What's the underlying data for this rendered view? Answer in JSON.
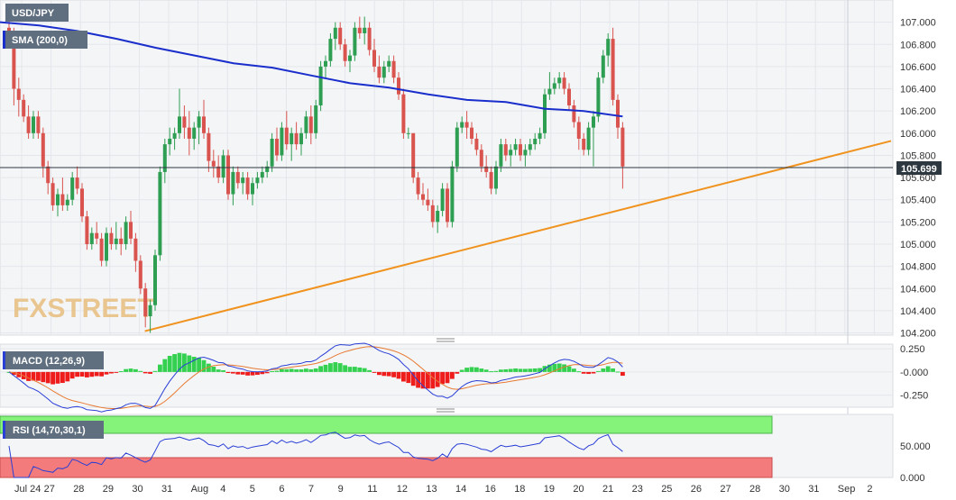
{
  "chart_data": {
    "type": "candlestick",
    "symbol": "USD/JPY",
    "sma_label": "SMA (200,0)",
    "current_price_label": "105.699",
    "current_price": 105.699,
    "watermark": "FXSTREET",
    "price_axis_ticks": [
      "107.000",
      "106.800",
      "106.600",
      "106.400",
      "106.200",
      "106.000",
      "105.800",
      "105.600",
      "105.400",
      "105.200",
      "105.000",
      "104.800",
      "104.600",
      "104.400",
      "104.200"
    ],
    "ylim": [
      104.18,
      107.2
    ],
    "x_labels": [
      "Jul 24",
      "27",
      "28",
      "29",
      "30",
      "31",
      "Aug",
      "4",
      "5",
      "6",
      "7",
      "9",
      "11",
      "12",
      "13",
      "14",
      "16",
      "18",
      "19",
      "20",
      "21",
      "23",
      "25",
      "26",
      "27",
      "28",
      "30",
      "31",
      "Sep",
      "2"
    ],
    "candles": [
      {
        "o": 106.95,
        "h": 107.05,
        "l": 106.8,
        "c": 106.9
      },
      {
        "o": 106.9,
        "h": 106.95,
        "l": 106.25,
        "c": 106.4
      },
      {
        "o": 106.4,
        "h": 106.5,
        "l": 106.15,
        "c": 106.3
      },
      {
        "o": 106.3,
        "h": 106.35,
        "l": 106.1,
        "c": 106.15
      },
      {
        "o": 106.15,
        "h": 106.25,
        "l": 105.95,
        "c": 106.0
      },
      {
        "o": 106.0,
        "h": 106.2,
        "l": 105.95,
        "c": 106.15
      },
      {
        "o": 106.15,
        "h": 106.2,
        "l": 105.95,
        "c": 106.0
      },
      {
        "o": 106.0,
        "h": 106.05,
        "l": 105.6,
        "c": 105.7
      },
      {
        "o": 105.7,
        "h": 105.75,
        "l": 105.45,
        "c": 105.55
      },
      {
        "o": 105.55,
        "h": 105.6,
        "l": 105.3,
        "c": 105.35
      },
      {
        "o": 105.35,
        "h": 105.5,
        "l": 105.25,
        "c": 105.45
      },
      {
        "o": 105.45,
        "h": 105.6,
        "l": 105.3,
        "c": 105.35
      },
      {
        "o": 105.35,
        "h": 105.45,
        "l": 105.3,
        "c": 105.4
      },
      {
        "o": 105.4,
        "h": 105.65,
        "l": 105.35,
        "c": 105.6
      },
      {
        "o": 105.6,
        "h": 105.7,
        "l": 105.45,
        "c": 105.5
      },
      {
        "o": 105.5,
        "h": 105.55,
        "l": 105.2,
        "c": 105.25
      },
      {
        "o": 105.25,
        "h": 105.3,
        "l": 104.95,
        "c": 105.0
      },
      {
        "o": 105.0,
        "h": 105.15,
        "l": 104.95,
        "c": 105.1
      },
      {
        "o": 105.1,
        "h": 105.2,
        "l": 105.0,
        "c": 105.05
      },
      {
        "o": 105.05,
        "h": 105.1,
        "l": 104.8,
        "c": 104.85
      },
      {
        "o": 104.85,
        "h": 105.15,
        "l": 104.8,
        "c": 105.1
      },
      {
        "o": 105.1,
        "h": 105.15,
        "l": 104.95,
        "c": 105.0
      },
      {
        "o": 105.0,
        "h": 105.2,
        "l": 104.95,
        "c": 105.05
      },
      {
        "o": 105.05,
        "h": 105.15,
        "l": 104.9,
        "c": 105.0
      },
      {
        "o": 105.0,
        "h": 105.25,
        "l": 104.95,
        "c": 105.2
      },
      {
        "o": 105.2,
        "h": 105.3,
        "l": 105.0,
        "c": 105.05
      },
      {
        "o": 105.05,
        "h": 105.1,
        "l": 104.75,
        "c": 104.85
      },
      {
        "o": 104.85,
        "h": 104.9,
        "l": 104.55,
        "c": 104.6
      },
      {
        "o": 104.6,
        "h": 104.65,
        "l": 104.25,
        "c": 104.35
      },
      {
        "o": 104.35,
        "h": 104.5,
        "l": 104.2,
        "c": 104.45
      },
      {
        "o": 104.45,
        "h": 104.95,
        "l": 104.4,
        "c": 104.9
      },
      {
        "o": 104.9,
        "h": 105.7,
        "l": 104.85,
        "c": 105.65
      },
      {
        "o": 105.65,
        "h": 105.95,
        "l": 105.55,
        "c": 105.9
      },
      {
        "o": 105.9,
        "h": 106.05,
        "l": 105.8,
        "c": 105.95
      },
      {
        "o": 105.95,
        "h": 106.05,
        "l": 105.85,
        "c": 106.0
      },
      {
        "o": 106.0,
        "h": 106.4,
        "l": 105.95,
        "c": 106.15
      },
      {
        "o": 106.15,
        "h": 106.25,
        "l": 105.95,
        "c": 106.05
      },
      {
        "o": 106.05,
        "h": 106.2,
        "l": 105.8,
        "c": 105.95
      },
      {
        "o": 105.95,
        "h": 106.1,
        "l": 105.85,
        "c": 106.05
      },
      {
        "o": 106.05,
        "h": 106.2,
        "l": 105.9,
        "c": 106.15
      },
      {
        "o": 106.15,
        "h": 106.3,
        "l": 105.95,
        "c": 106.0
      },
      {
        "o": 106.0,
        "h": 106.05,
        "l": 105.65,
        "c": 105.75
      },
      {
        "o": 105.75,
        "h": 105.85,
        "l": 105.6,
        "c": 105.7
      },
      {
        "o": 105.7,
        "h": 105.8,
        "l": 105.55,
        "c": 105.6
      },
      {
        "o": 105.6,
        "h": 105.85,
        "l": 105.55,
        "c": 105.8
      },
      {
        "o": 105.8,
        "h": 105.85,
        "l": 105.4,
        "c": 105.45
      },
      {
        "o": 105.45,
        "h": 105.7,
        "l": 105.35,
        "c": 105.65
      },
      {
        "o": 105.65,
        "h": 105.7,
        "l": 105.5,
        "c": 105.55
      },
      {
        "o": 105.55,
        "h": 105.65,
        "l": 105.45,
        "c": 105.6
      },
      {
        "o": 105.6,
        "h": 105.65,
        "l": 105.4,
        "c": 105.45
      },
      {
        "o": 105.45,
        "h": 105.6,
        "l": 105.35,
        "c": 105.55
      },
      {
        "o": 105.55,
        "h": 105.65,
        "l": 105.5,
        "c": 105.6
      },
      {
        "o": 105.6,
        "h": 105.7,
        "l": 105.55,
        "c": 105.65
      },
      {
        "o": 105.65,
        "h": 105.75,
        "l": 105.6,
        "c": 105.7
      },
      {
        "o": 105.7,
        "h": 106.0,
        "l": 105.65,
        "c": 105.95
      },
      {
        "o": 105.95,
        "h": 106.05,
        "l": 105.75,
        "c": 105.8
      },
      {
        "o": 105.8,
        "h": 106.1,
        "l": 105.75,
        "c": 106.05
      },
      {
        "o": 106.05,
        "h": 106.2,
        "l": 105.85,
        "c": 105.9
      },
      {
        "o": 105.9,
        "h": 106.05,
        "l": 105.75,
        "c": 106.0
      },
      {
        "o": 106.0,
        "h": 106.1,
        "l": 105.85,
        "c": 105.9
      },
      {
        "o": 105.9,
        "h": 106.05,
        "l": 105.8,
        "c": 106.0
      },
      {
        "o": 106.0,
        "h": 106.2,
        "l": 105.95,
        "c": 106.15
      },
      {
        "o": 106.15,
        "h": 106.25,
        "l": 105.9,
        "c": 106.0
      },
      {
        "o": 106.0,
        "h": 106.3,
        "l": 105.95,
        "c": 106.25
      },
      {
        "o": 106.25,
        "h": 106.65,
        "l": 106.2,
        "c": 106.6
      },
      {
        "o": 106.6,
        "h": 106.7,
        "l": 106.5,
        "c": 106.65
      },
      {
        "o": 106.65,
        "h": 106.9,
        "l": 106.6,
        "c": 106.85
      },
      {
        "o": 106.85,
        "h": 107.0,
        "l": 106.75,
        "c": 106.95
      },
      {
        "o": 106.95,
        "h": 107.0,
        "l": 106.75,
        "c": 106.8
      },
      {
        "o": 106.8,
        "h": 106.85,
        "l": 106.6,
        "c": 106.65
      },
      {
        "o": 106.65,
        "h": 106.75,
        "l": 106.55,
        "c": 106.7
      },
      {
        "o": 106.7,
        "h": 107.0,
        "l": 106.65,
        "c": 106.95
      },
      {
        "o": 106.95,
        "h": 107.05,
        "l": 106.85,
        "c": 106.9
      },
      {
        "o": 106.9,
        "h": 107.05,
        "l": 106.8,
        "c": 106.95
      },
      {
        "o": 106.95,
        "h": 107.0,
        "l": 106.7,
        "c": 106.75
      },
      {
        "o": 106.75,
        "h": 106.85,
        "l": 106.55,
        "c": 106.6
      },
      {
        "o": 106.6,
        "h": 106.7,
        "l": 106.45,
        "c": 106.5
      },
      {
        "o": 106.5,
        "h": 106.65,
        "l": 106.45,
        "c": 106.6
      },
      {
        "o": 106.6,
        "h": 106.7,
        "l": 106.55,
        "c": 106.65
      },
      {
        "o": 106.65,
        "h": 106.7,
        "l": 106.45,
        "c": 106.5
      },
      {
        "o": 106.5,
        "h": 106.55,
        "l": 106.3,
        "c": 106.35
      },
      {
        "o": 106.35,
        "h": 106.4,
        "l": 105.95,
        "c": 106.0
      },
      {
        "o": 106.0,
        "h": 106.05,
        "l": 105.95,
        "c": 106.0
      },
      {
        "o": 106.0,
        "h": 106.0,
        "l": 105.55,
        "c": 105.6
      },
      {
        "o": 105.6,
        "h": 105.65,
        "l": 105.4,
        "c": 105.45
      },
      {
        "o": 105.45,
        "h": 105.55,
        "l": 105.35,
        "c": 105.4
      },
      {
        "o": 105.4,
        "h": 105.5,
        "l": 105.3,
        "c": 105.35
      },
      {
        "o": 105.35,
        "h": 105.4,
        "l": 105.15,
        "c": 105.2
      },
      {
        "o": 105.2,
        "h": 105.35,
        "l": 105.1,
        "c": 105.3
      },
      {
        "o": 105.3,
        "h": 105.55,
        "l": 105.25,
        "c": 105.5
      },
      {
        "o": 105.5,
        "h": 105.55,
        "l": 105.15,
        "c": 105.2
      },
      {
        "o": 105.2,
        "h": 105.75,
        "l": 105.15,
        "c": 105.7
      },
      {
        "o": 105.7,
        "h": 106.1,
        "l": 105.65,
        "c": 106.05
      },
      {
        "o": 106.05,
        "h": 106.15,
        "l": 106.0,
        "c": 106.1
      },
      {
        "o": 106.1,
        "h": 106.2,
        "l": 105.95,
        "c": 106.05
      },
      {
        "o": 106.05,
        "h": 106.1,
        "l": 105.9,
        "c": 105.95
      },
      {
        "o": 105.95,
        "h": 106.0,
        "l": 105.8,
        "c": 105.85
      },
      {
        "o": 105.85,
        "h": 105.9,
        "l": 105.65,
        "c": 105.7
      },
      {
        "o": 105.7,
        "h": 105.8,
        "l": 105.6,
        "c": 105.65
      },
      {
        "o": 105.65,
        "h": 105.7,
        "l": 105.45,
        "c": 105.5
      },
      {
        "o": 105.5,
        "h": 105.75,
        "l": 105.45,
        "c": 105.7
      },
      {
        "o": 105.7,
        "h": 105.95,
        "l": 105.65,
        "c": 105.9
      },
      {
        "o": 105.9,
        "h": 105.95,
        "l": 105.75,
        "c": 105.8
      },
      {
        "o": 105.8,
        "h": 105.9,
        "l": 105.7,
        "c": 105.85
      },
      {
        "o": 105.85,
        "h": 105.95,
        "l": 105.8,
        "c": 105.9
      },
      {
        "o": 105.9,
        "h": 105.95,
        "l": 105.75,
        "c": 105.8
      },
      {
        "o": 105.8,
        "h": 105.9,
        "l": 105.7,
        "c": 105.85
      },
      {
        "o": 105.85,
        "h": 105.95,
        "l": 105.8,
        "c": 105.9
      },
      {
        "o": 105.9,
        "h": 106.0,
        "l": 105.85,
        "c": 105.95
      },
      {
        "o": 105.95,
        "h": 106.05,
        "l": 105.9,
        "c": 106.0
      },
      {
        "o": 106.0,
        "h": 106.4,
        "l": 105.95,
        "c": 106.35
      },
      {
        "o": 106.35,
        "h": 106.55,
        "l": 106.3,
        "c": 106.4
      },
      {
        "o": 106.4,
        "h": 106.5,
        "l": 106.35,
        "c": 106.45
      },
      {
        "o": 106.45,
        "h": 106.55,
        "l": 106.4,
        "c": 106.5
      },
      {
        "o": 106.5,
        "h": 106.55,
        "l": 106.35,
        "c": 106.4
      },
      {
        "o": 106.4,
        "h": 106.45,
        "l": 106.2,
        "c": 106.25
      },
      {
        "o": 106.25,
        "h": 106.3,
        "l": 106.05,
        "c": 106.1
      },
      {
        "o": 106.1,
        "h": 106.15,
        "l": 105.85,
        "c": 105.95
      },
      {
        "o": 105.95,
        "h": 106.0,
        "l": 105.8,
        "c": 105.85
      },
      {
        "o": 105.85,
        "h": 106.1,
        "l": 105.8,
        "c": 106.05
      },
      {
        "o": 106.05,
        "h": 106.2,
        "l": 105.7,
        "c": 106.15
      },
      {
        "o": 106.15,
        "h": 106.55,
        "l": 106.1,
        "c": 106.5
      },
      {
        "o": 106.5,
        "h": 106.75,
        "l": 106.45,
        "c": 106.7
      },
      {
        "o": 106.7,
        "h": 106.9,
        "l": 106.6,
        "c": 106.85
      },
      {
        "o": 106.85,
        "h": 106.95,
        "l": 106.25,
        "c": 106.3
      },
      {
        "o": 106.3,
        "h": 106.35,
        "l": 105.95,
        "c": 106.05
      },
      {
        "o": 106.05,
        "h": 106.1,
        "l": 105.5,
        "c": 105.7
      }
    ],
    "sma": [
      107.0,
      106.97,
      106.92,
      106.85,
      106.77,
      106.7,
      106.63,
      106.59,
      106.52,
      106.45,
      106.41,
      106.35,
      106.3,
      106.28,
      106.22,
      106.2,
      106.15
    ],
    "trendline": {
      "from_index": 29,
      "from_price": 104.2,
      "to_index": 153,
      "to_price": 105.95
    },
    "macd": {
      "label": "MACD (12,26,9)",
      "ticks": [
        "0.250",
        "-0.000",
        "-0.250"
      ],
      "ylim": [
        -0.38,
        0.3
      ]
    },
    "rsi": {
      "label": "RSI (14,70,30,1)",
      "ticks": [
        "50.000",
        "0.000"
      ],
      "ylim": [
        0,
        100
      ],
      "overbought": 70,
      "oversold": 30
    },
    "grid": true,
    "colors": {
      "up": "#2e9e52",
      "down": "#d9534f",
      "sma": "#1a2ecc",
      "trend": "#f0931e",
      "macd_line": "#2a3fd6",
      "signal_line": "#e87a32",
      "hist_up": "#33d14f",
      "hist_down": "#ef1c1c",
      "rsi_line": "#2a3fd6",
      "ob_band": "#85f27a",
      "os_band": "#f47b7b",
      "label_bg": "#5f6f7f",
      "current_bg": "#2d3740"
    }
  }
}
